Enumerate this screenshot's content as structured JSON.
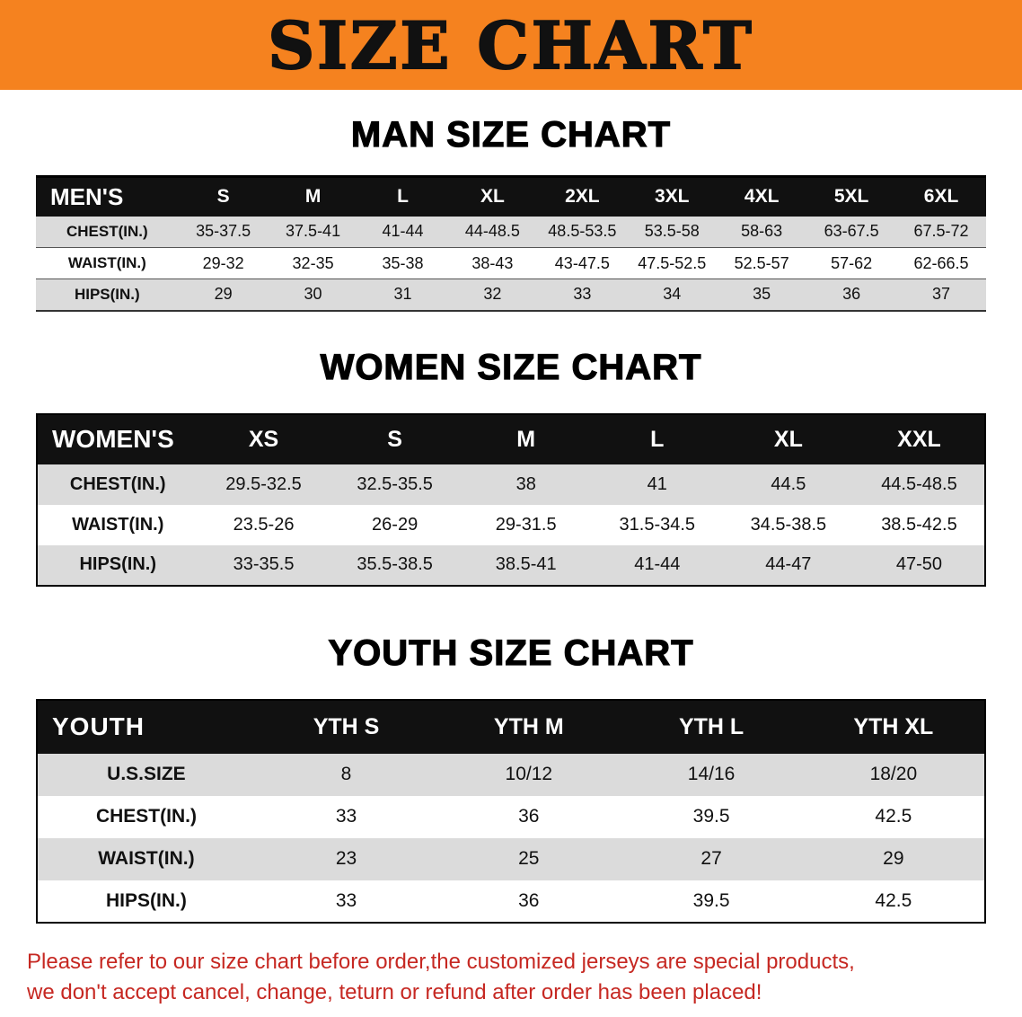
{
  "banner": {
    "title": "SIZE CHART",
    "bg_color": "#F5821F",
    "text_color": "#111111"
  },
  "sections": {
    "men": {
      "heading": "MAN SIZE CHART",
      "table": {
        "header": [
          "MEN'S",
          "S",
          "M",
          "L",
          "XL",
          "2XL",
          "3XL",
          "4XL",
          "5XL",
          "6XL"
        ],
        "rows": [
          [
            "CHEST(IN.)",
            "35-37.5",
            "37.5-41",
            "41-44",
            "44-48.5",
            "48.5-53.5",
            "53.5-58",
            "58-63",
            "63-67.5",
            "67.5-72"
          ],
          [
            "WAIST(IN.)",
            "29-32",
            "32-35",
            "35-38",
            "38-43",
            "43-47.5",
            "47.5-52.5",
            "52.5-57",
            "57-62",
            "62-66.5"
          ],
          [
            "HIPS(IN.)",
            "29",
            "30",
            "31",
            "32",
            "33",
            "34",
            "35",
            "36",
            "37"
          ]
        ]
      }
    },
    "women": {
      "heading": "WOMEN SIZE CHART",
      "table": {
        "header": [
          "WOMEN'S",
          "XS",
          "S",
          "M",
          "L",
          "XL",
          "XXL"
        ],
        "rows": [
          [
            "CHEST(IN.)",
            "29.5-32.5",
            "32.5-35.5",
            "38",
            "41",
            "44.5",
            "44.5-48.5"
          ],
          [
            "WAIST(IN.)",
            "23.5-26",
            "26-29",
            "29-31.5",
            "31.5-34.5",
            "34.5-38.5",
            "38.5-42.5"
          ],
          [
            "HIPS(IN.)",
            "33-35.5",
            "35.5-38.5",
            "38.5-41",
            "41-44",
            "44-47",
            "47-50"
          ]
        ]
      }
    },
    "youth": {
      "heading": "YOUTH SIZE CHART",
      "table": {
        "header": [
          "YOUTH",
          "YTH S",
          "YTH M",
          "YTH L",
          "YTH XL"
        ],
        "rows": [
          [
            "U.S.SIZE",
            "8",
            "10/12",
            "14/16",
            "18/20"
          ],
          [
            "CHEST(IN.)",
            "33",
            "36",
            "39.5",
            "42.5"
          ],
          [
            "WAIST(IN.)",
            "23",
            "25",
            "27",
            "29"
          ],
          [
            "HIPS(IN.)",
            "33",
            "36",
            "39.5",
            "42.5"
          ]
        ]
      }
    }
  },
  "footer": {
    "line1": "Please refer to our size chart before order,the customized jerseys are special products,",
    "line2": "we don't accept cancel, change, teturn or refund after order has been placed!",
    "text_color": "#C62822"
  },
  "table_colors": {
    "header_bg": "#111111",
    "header_text": "#FFFFFF",
    "stripe": "#DBDBDB"
  }
}
